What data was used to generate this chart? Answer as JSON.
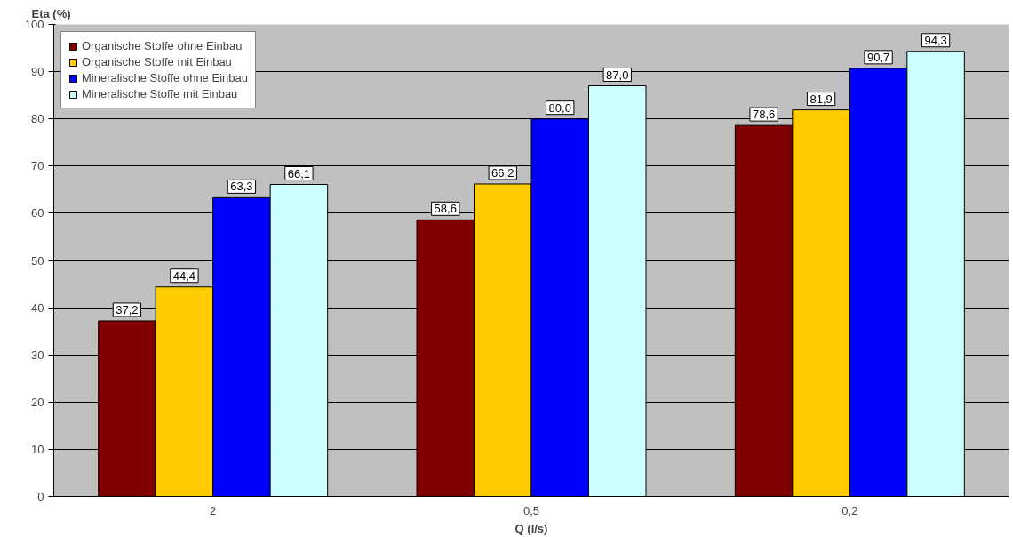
{
  "chart_data": {
    "type": "bar",
    "ylabel": "Eta (%)",
    "xlabel": "Q (l/s)",
    "categories": [
      "2",
      "0,5",
      "0,2"
    ],
    "series": [
      {
        "name": "Organische Stoffe ohne Einbau",
        "color": "#800000",
        "values": [
          37.2,
          58.6,
          78.6
        ],
        "value_labels": [
          "37,2",
          "58,6",
          "78,6"
        ]
      },
      {
        "name": "Organische Stoffe mit Einbau",
        "color": "#ffcc00",
        "values": [
          44.4,
          66.2,
          81.9
        ],
        "value_labels": [
          "44,4",
          "66,2",
          "81,9"
        ]
      },
      {
        "name": "Mineralische Stoffe ohne Einbau",
        "color": "#0000ff",
        "values": [
          63.3,
          80.0,
          90.7
        ],
        "value_labels": [
          "63,3",
          "80,0",
          "90,7"
        ]
      },
      {
        "name": "Mineralische Stoffe mit Einbau",
        "color": "#ccffff",
        "values": [
          66.1,
          87.0,
          94.3
        ],
        "value_labels": [
          "66,1",
          "87,0",
          "94,3"
        ]
      }
    ],
    "ylim": [
      0,
      100
    ],
    "yticks": [
      0,
      10,
      20,
      30,
      40,
      50,
      60,
      70,
      80,
      90,
      100
    ],
    "grid": "y",
    "legend": "top left"
  }
}
